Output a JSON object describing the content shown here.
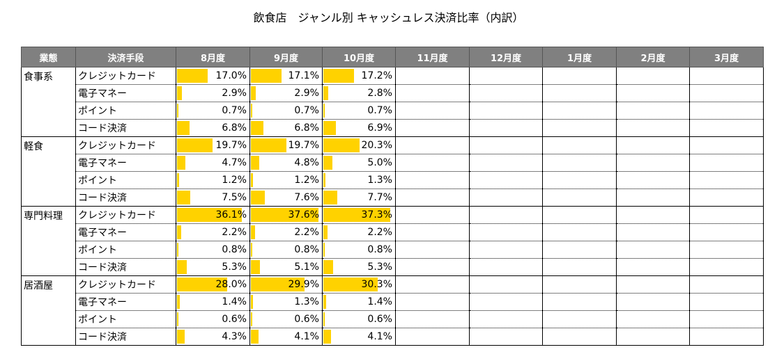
{
  "title": "飲食店　ジャンル別 キャッシュレス決済比率（内訳）",
  "table": {
    "columns": [
      "業態",
      "決済手段",
      "8月度",
      "9月度",
      "10月度",
      "11月度",
      "12月度",
      "1月度",
      "2月度",
      "3月度"
    ],
    "groups": [
      {
        "name": "食事系",
        "rows": [
          {
            "method": "クレジットカード",
            "values": [
              17.0,
              17.1,
              17.2
            ],
            "value_labels": [
              "17.0%",
              "17.1%",
              "17.2%"
            ]
          },
          {
            "method": "電子マネー",
            "values": [
              2.9,
              2.9,
              2.8
            ],
            "value_labels": [
              "2.9%",
              "2.9%",
              "2.8%"
            ]
          },
          {
            "method": "ポイント",
            "values": [
              0.7,
              0.7,
              0.7
            ],
            "value_labels": [
              "0.7%",
              "0.7%",
              "0.7%"
            ]
          },
          {
            "method": "コード決済",
            "values": [
              6.8,
              6.8,
              6.9
            ],
            "value_labels": [
              "6.8%",
              "6.8%",
              "6.9%"
            ]
          }
        ]
      },
      {
        "name": "軽食",
        "rows": [
          {
            "method": "クレジットカード",
            "values": [
              19.7,
              19.7,
              20.3
            ],
            "value_labels": [
              "19.7%",
              "19.7%",
              "20.3%"
            ]
          },
          {
            "method": "電子マネー",
            "values": [
              4.7,
              4.8,
              5.0
            ],
            "value_labels": [
              "4.7%",
              "4.8%",
              "5.0%"
            ]
          },
          {
            "method": "ポイント",
            "values": [
              1.2,
              1.2,
              1.3
            ],
            "value_labels": [
              "1.2%",
              "1.2%",
              "1.3%"
            ]
          },
          {
            "method": "コード決済",
            "values": [
              7.5,
              7.6,
              7.7
            ],
            "value_labels": [
              "7.5%",
              "7.6%",
              "7.7%"
            ]
          }
        ]
      },
      {
        "name": "専門料理",
        "rows": [
          {
            "method": "クレジットカード",
            "values": [
              36.1,
              37.6,
              37.3
            ],
            "value_labels": [
              "36.1%",
              "37.6%",
              "37.3%"
            ]
          },
          {
            "method": "電子マネー",
            "values": [
              2.2,
              2.2,
              2.2
            ],
            "value_labels": [
              "2.2%",
              "2.2%",
              "2.2%"
            ]
          },
          {
            "method": "ポイント",
            "values": [
              0.8,
              0.8,
              0.8
            ],
            "value_labels": [
              "0.8%",
              "0.8%",
              "0.8%"
            ]
          },
          {
            "method": "コード決済",
            "values": [
              5.3,
              5.1,
              5.3
            ],
            "value_labels": [
              "5.3%",
              "5.1%",
              "5.3%"
            ]
          }
        ]
      },
      {
        "name": "居酒屋",
        "rows": [
          {
            "method": "クレジットカード",
            "values": [
              28.0,
              29.9,
              30.3
            ],
            "value_labels": [
              "28.0%",
              "29.9%",
              "30.3%"
            ]
          },
          {
            "method": "電子マネー",
            "values": [
              1.4,
              1.3,
              1.4
            ],
            "value_labels": [
              "1.4%",
              "1.3%",
              "1.4%"
            ]
          },
          {
            "method": "ポイント",
            "values": [
              0.6,
              0.6,
              0.6
            ],
            "value_labels": [
              "0.6%",
              "0.6%",
              "0.6%"
            ]
          },
          {
            "method": "コード決済",
            "values": [
              4.3,
              4.1,
              4.1
            ],
            "value_labels": [
              "4.3%",
              "4.1%",
              "4.1%"
            ]
          }
        ]
      }
    ]
  }
}
